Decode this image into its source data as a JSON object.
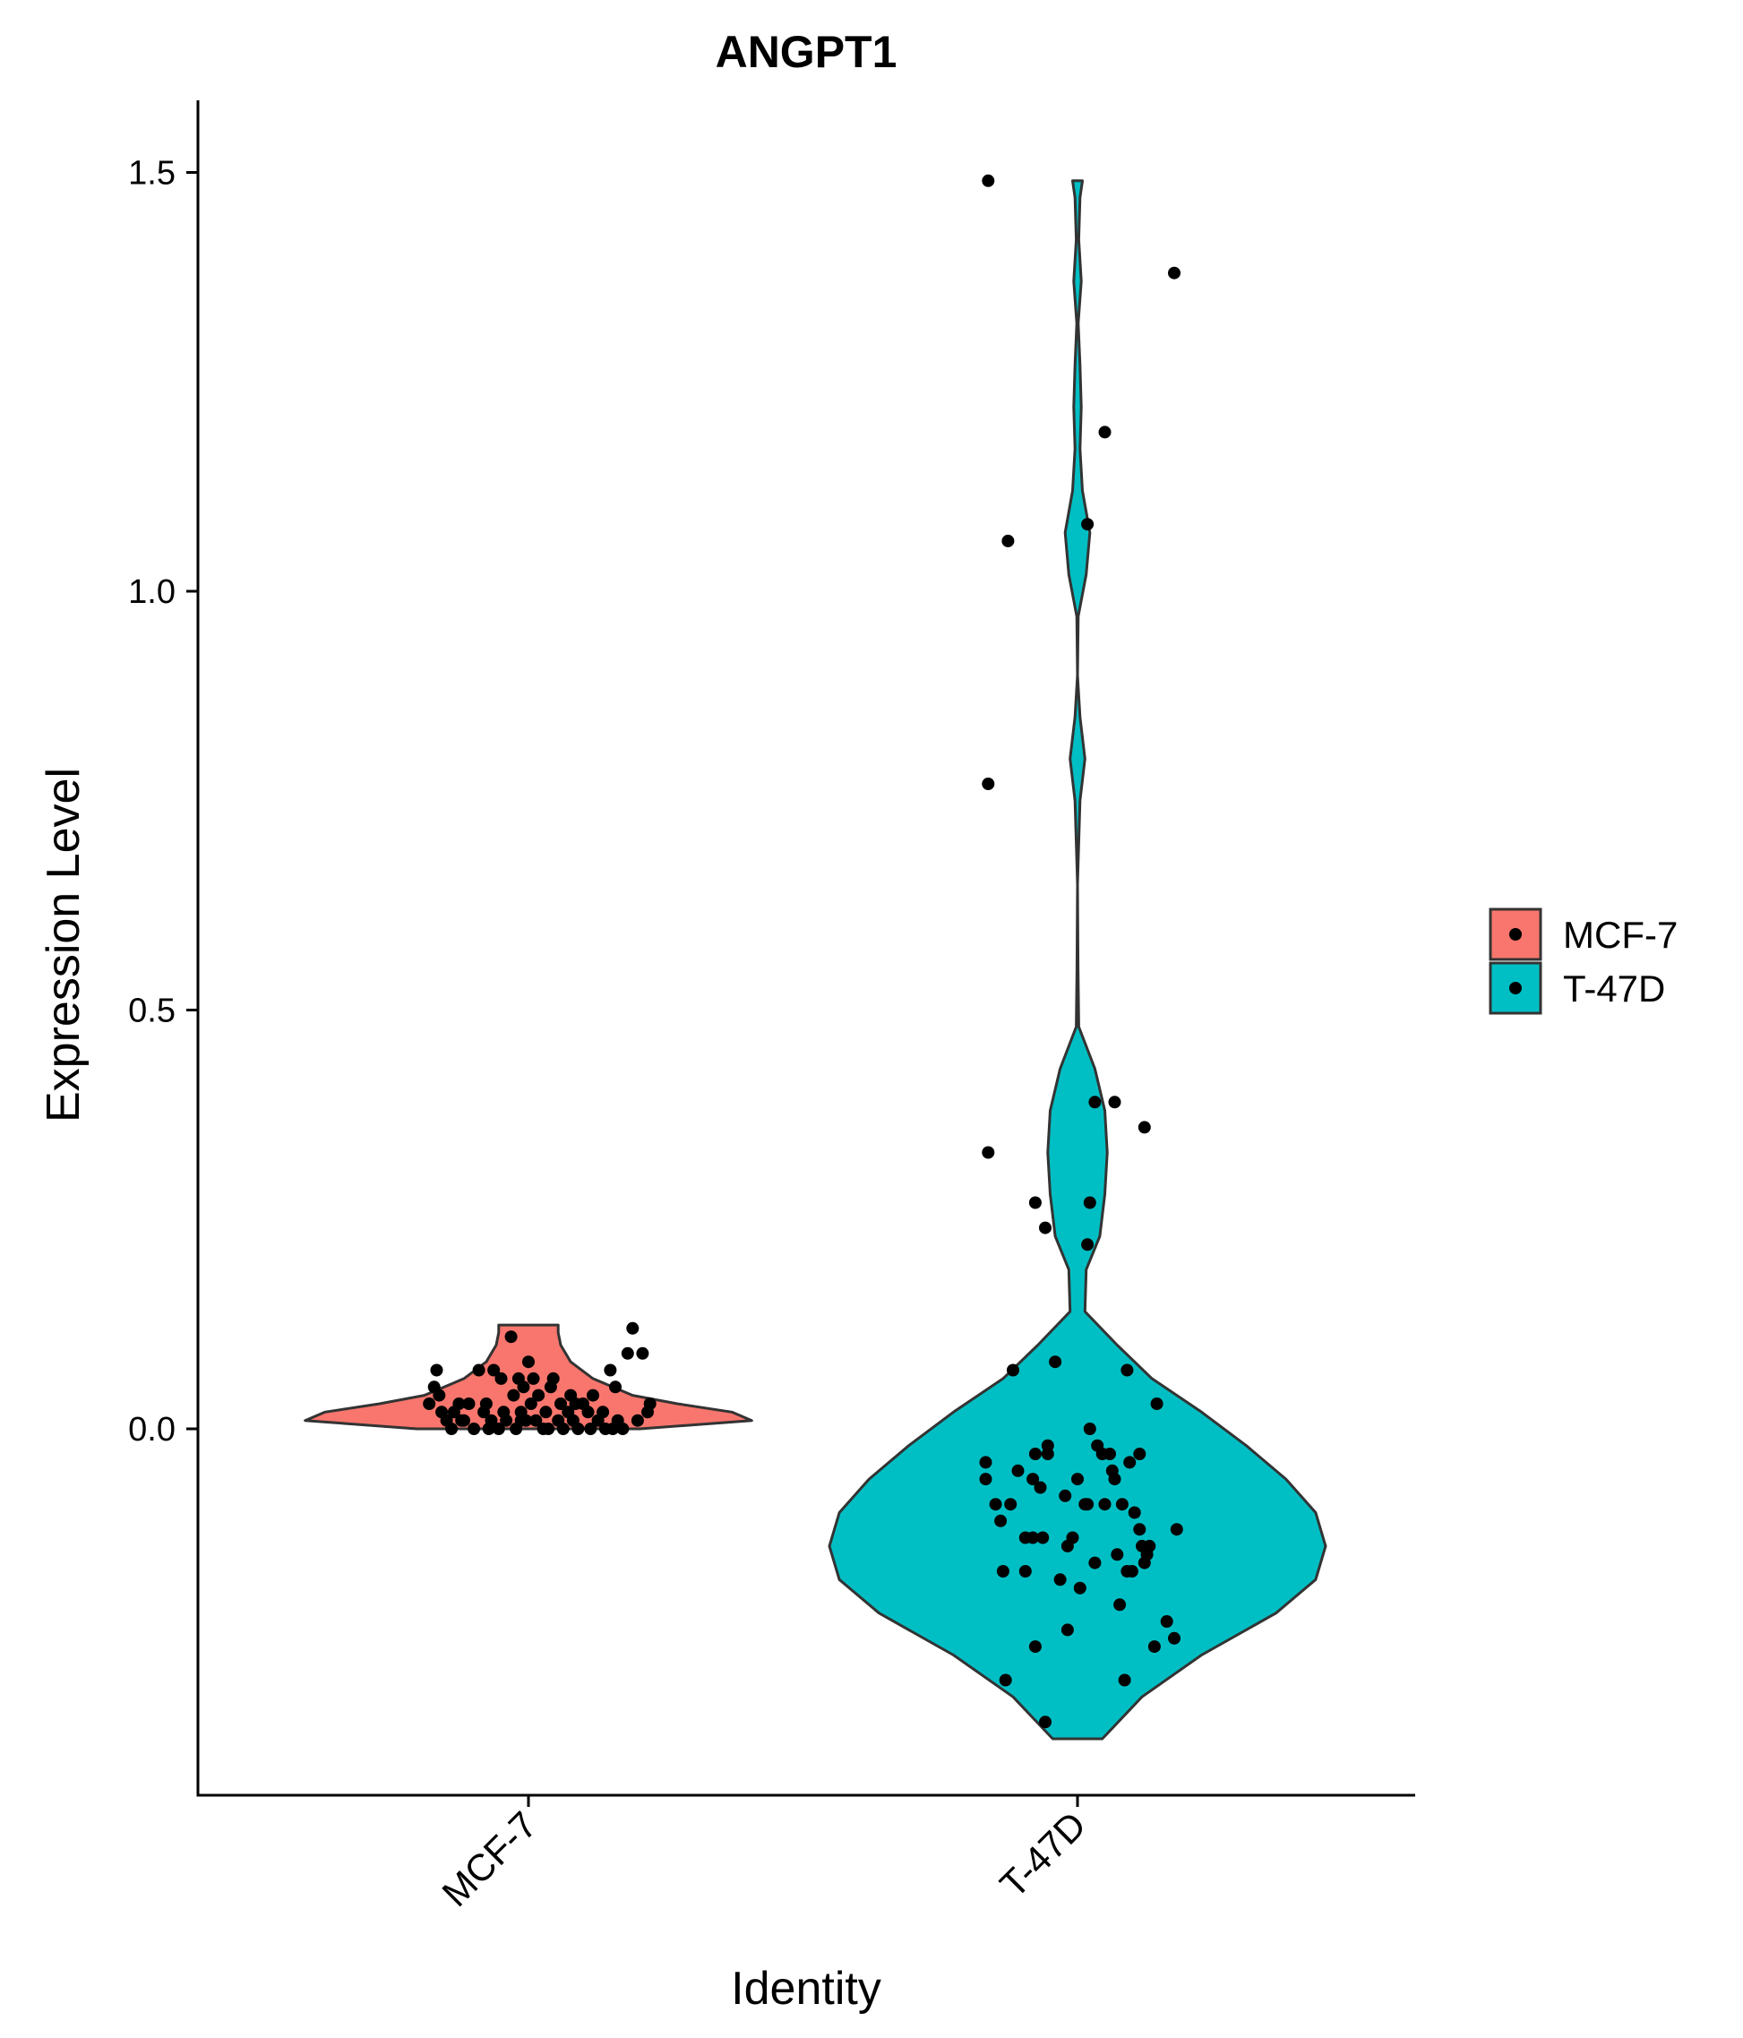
{
  "chart_data": {
    "type": "violin",
    "title": "ANGPT1",
    "xlabel": "Identity",
    "ylabel": "Expression Level",
    "categories": [
      "MCF-7",
      "T-47D"
    ],
    "ylim": [
      -0.44,
      1.59
    ],
    "yticks": [
      "0.0",
      "0.5",
      "1.0",
      "1.5"
    ],
    "ytick_values": [
      0,
      0.5,
      1.0,
      1.5
    ],
    "grid": false,
    "legend_position": "right",
    "legend": [
      "MCF-7",
      "T-47D"
    ],
    "colors": {
      "MCF-7": "#F8766D",
      "T-47D": "#00BFC4",
      "outline": "#333333",
      "point": "#000000"
    },
    "series": [
      {
        "name": "MCF-7",
        "color": "#F8766D",
        "violin_range": [
          0.0,
          0.124
        ],
        "density": [
          [
            0.0,
            0.45
          ],
          [
            0.01,
            0.9
          ],
          [
            0.02,
            0.82
          ],
          [
            0.03,
            0.6
          ],
          [
            0.04,
            0.42
          ],
          [
            0.06,
            0.26
          ],
          [
            0.08,
            0.17
          ],
          [
            0.1,
            0.13
          ],
          [
            0.115,
            0.12
          ],
          [
            0.124,
            0.12
          ]
        ],
        "points": [
          [
            -0.4,
            0.03
          ],
          [
            -0.38,
            0.05
          ],
          [
            -0.37,
            0.07
          ],
          [
            -0.35,
            0.02
          ],
          [
            -0.33,
            0.01
          ],
          [
            -0.31,
            0.0
          ],
          [
            -0.3,
            0.02
          ],
          [
            -0.28,
            0.03
          ],
          [
            -0.26,
            0.01
          ],
          [
            -0.24,
            0.03
          ],
          [
            -0.22,
            0.0
          ],
          [
            -0.2,
            0.07
          ],
          [
            -0.18,
            0.02
          ],
          [
            -0.17,
            0.03
          ],
          [
            -0.15,
            0.01
          ],
          [
            -0.14,
            0.07
          ],
          [
            -0.12,
            0.0
          ],
          [
            -0.11,
            0.06
          ],
          [
            -0.1,
            0.02
          ],
          [
            -0.09,
            0.01
          ],
          [
            -0.07,
            0.11
          ],
          [
            -0.06,
            0.04
          ],
          [
            -0.05,
            0.0
          ],
          [
            -0.04,
            0.06
          ],
          [
            -0.03,
            0.02
          ],
          [
            -0.02,
            0.05
          ],
          [
            -0.01,
            0.01
          ],
          [
            0.0,
            0.08
          ],
          [
            0.01,
            0.03
          ],
          [
            0.02,
            0.06
          ],
          [
            0.03,
            0.01
          ],
          [
            0.04,
            0.04
          ],
          [
            0.06,
            0.0
          ],
          [
            0.07,
            0.02
          ],
          [
            0.09,
            0.05
          ],
          [
            0.1,
            0.06
          ],
          [
            0.12,
            0.01
          ],
          [
            0.13,
            0.03
          ],
          [
            0.14,
            0.0
          ],
          [
            0.16,
            0.02
          ],
          [
            0.17,
            0.04
          ],
          [
            0.18,
            0.01
          ],
          [
            0.2,
            0.0
          ],
          [
            0.22,
            0.03
          ],
          [
            0.24,
            0.02
          ],
          [
            0.26,
            0.04
          ],
          [
            0.28,
            0.01
          ],
          [
            0.3,
            0.02
          ],
          [
            0.31,
            0.0
          ],
          [
            0.33,
            0.07
          ],
          [
            0.34,
            0.0
          ],
          [
            0.35,
            0.05
          ],
          [
            0.36,
            0.01
          ],
          [
            0.38,
            0.0
          ],
          [
            0.4,
            0.09
          ],
          [
            0.42,
            0.12
          ],
          [
            0.44,
            0.01
          ],
          [
            0.46,
            0.09
          ],
          [
            0.48,
            0.02
          ],
          [
            0.49,
            0.03
          ],
          [
            -0.27,
            0.01
          ],
          [
            -0.03,
            0.01
          ],
          [
            0.08,
            0.0
          ],
          [
            0.25,
            0.0
          ],
          [
            -0.16,
            0.0
          ],
          [
            0.19,
            0.03
          ],
          [
            -0.36,
            0.04
          ]
        ]
      },
      {
        "name": "T-47D",
        "color": "#00BFC4",
        "violin_range": [
          -0.37,
          1.49
        ],
        "density": [
          [
            -0.37,
            0.1
          ],
          [
            -0.32,
            0.26
          ],
          [
            -0.27,
            0.5
          ],
          [
            -0.22,
            0.8
          ],
          [
            -0.18,
            0.96
          ],
          [
            -0.14,
            1.0
          ],
          [
            -0.1,
            0.96
          ],
          [
            -0.06,
            0.84
          ],
          [
            -0.02,
            0.68
          ],
          [
            0.02,
            0.5
          ],
          [
            0.06,
            0.3
          ],
          [
            0.1,
            0.16
          ],
          [
            0.14,
            0.03
          ],
          [
            0.19,
            0.035
          ],
          [
            0.23,
            0.09
          ],
          [
            0.28,
            0.11
          ],
          [
            0.33,
            0.12
          ],
          [
            0.38,
            0.11
          ],
          [
            0.43,
            0.07
          ],
          [
            0.48,
            0.005
          ],
          [
            0.55,
            0.002
          ],
          [
            0.65,
            0.0
          ],
          [
            0.7,
            0.005
          ],
          [
            0.75,
            0.01
          ],
          [
            0.8,
            0.03
          ],
          [
            0.85,
            0.01
          ],
          [
            0.9,
            0.0
          ],
          [
            0.97,
            0.003
          ],
          [
            1.02,
            0.035
          ],
          [
            1.07,
            0.05
          ],
          [
            1.12,
            0.02
          ],
          [
            1.17,
            0.01
          ],
          [
            1.22,
            0.015
          ],
          [
            1.27,
            0.01
          ],
          [
            1.32,
            0.003
          ],
          [
            1.37,
            0.015
          ],
          [
            1.42,
            0.005
          ],
          [
            1.47,
            0.01
          ],
          [
            1.49,
            0.02
          ]
        ],
        "points": [
          [
            -0.36,
            1.49
          ],
          [
            0.39,
            1.38
          ],
          [
            0.11,
            1.19
          ],
          [
            -0.28,
            1.06
          ],
          [
            0.04,
            1.08
          ],
          [
            -0.36,
            0.77
          ],
          [
            -0.36,
            0.33
          ],
          [
            0.07,
            0.39
          ],
          [
            0.15,
            0.39
          ],
          [
            0.27,
            0.36
          ],
          [
            -0.17,
            0.27
          ],
          [
            0.05,
            0.27
          ],
          [
            -0.13,
            0.24
          ],
          [
            0.04,
            0.22
          ],
          [
            -0.09,
            0.08
          ],
          [
            -0.26,
            0.07
          ],
          [
            0.2,
            0.07
          ],
          [
            0.32,
            0.03
          ],
          [
            -0.37,
            -0.04
          ],
          [
            -0.37,
            -0.06
          ],
          [
            -0.33,
            -0.09
          ],
          [
            -0.31,
            -0.11
          ],
          [
            -0.3,
            -0.17
          ],
          [
            -0.27,
            -0.09
          ],
          [
            -0.24,
            -0.05
          ],
          [
            -0.21,
            -0.17
          ],
          [
            -0.21,
            -0.13
          ],
          [
            -0.18,
            -0.06
          ],
          [
            -0.18,
            -0.13
          ],
          [
            -0.17,
            -0.03
          ],
          [
            -0.15,
            -0.07
          ],
          [
            -0.14,
            -0.13
          ],
          [
            -0.12,
            -0.02
          ],
          [
            -0.12,
            -0.03
          ],
          [
            -0.05,
            -0.08
          ],
          [
            -0.04,
            -0.14
          ],
          [
            -0.02,
            -0.13
          ],
          [
            0.0,
            -0.06
          ],
          [
            0.03,
            -0.09
          ],
          [
            0.04,
            -0.09
          ],
          [
            0.05,
            -0.0
          ],
          [
            0.07,
            -0.16
          ],
          [
            0.08,
            -0.02
          ],
          [
            0.1,
            -0.03
          ],
          [
            0.11,
            -0.09
          ],
          [
            0.13,
            -0.03
          ],
          [
            0.14,
            -0.05
          ],
          [
            0.15,
            -0.06
          ],
          [
            0.16,
            -0.15
          ],
          [
            0.17,
            -0.21
          ],
          [
            0.18,
            -0.09
          ],
          [
            0.2,
            -0.17
          ],
          [
            0.21,
            -0.04
          ],
          [
            0.22,
            -0.17
          ],
          [
            0.23,
            -0.1
          ],
          [
            0.25,
            -0.03
          ],
          [
            0.25,
            -0.12
          ],
          [
            0.26,
            -0.14
          ],
          [
            0.27,
            -0.16
          ],
          [
            0.28,
            -0.15
          ],
          [
            0.29,
            -0.14
          ],
          [
            0.36,
            -0.23
          ],
          [
            0.39,
            -0.25
          ],
          [
            0.4,
            -0.12
          ],
          [
            0.31,
            -0.26
          ],
          [
            -0.17,
            -0.26
          ],
          [
            -0.29,
            -0.3
          ],
          [
            -0.13,
            -0.35
          ],
          [
            -0.04,
            -0.24
          ],
          [
            0.01,
            -0.19
          ],
          [
            0.19,
            -0.3
          ],
          [
            -0.07,
            -0.18
          ]
        ]
      }
    ]
  }
}
